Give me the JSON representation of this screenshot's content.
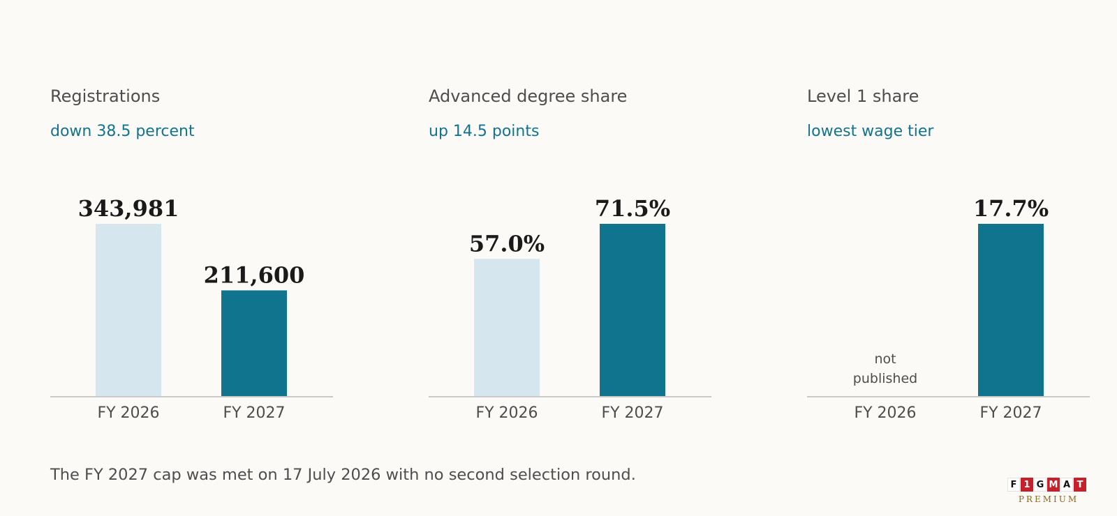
{
  "colors": {
    "background": "#fbfaf7",
    "bar_previous": "#d5e6ee",
    "bar_current": "#11748f",
    "subtitle": "#11748f",
    "text": "#4d4d4d",
    "value_label": "#1a1a1a",
    "axis": "#c8c8c8"
  },
  "chart_data": [
    {
      "type": "bar",
      "title": "Registrations",
      "subtitle": "down 38.5 percent",
      "categories": [
        "FY 2026",
        "FY 2027"
      ],
      "values": [
        343981,
        211600
      ],
      "value_labels": [
        "343,981",
        "211,600"
      ],
      "ylim": [
        0,
        343981
      ],
      "grid": false
    },
    {
      "type": "bar",
      "title": "Advanced degree share",
      "subtitle": "up 14.5 points",
      "categories": [
        "FY 2026",
        "FY 2027"
      ],
      "values": [
        57.0,
        71.5
      ],
      "value_labels": [
        "57.0%",
        "71.5%"
      ],
      "ylim": [
        0,
        71.5
      ],
      "grid": false
    },
    {
      "type": "bar",
      "title": "Level 1 share",
      "subtitle": "lowest wage tier",
      "categories": [
        "FY 2026",
        "FY 2027"
      ],
      "values": [
        null,
        17.7
      ],
      "value_labels": [
        "",
        "17.7%"
      ],
      "missing_label_lines": [
        "not",
        "published"
      ],
      "ylim": [
        0,
        17.7
      ],
      "grid": false
    }
  ],
  "footnote": "The FY 2027 cap was met on 17 July 2026 with no second selection round.",
  "logo": {
    "letters": [
      "F",
      "1",
      "G",
      "M",
      "A",
      "T"
    ],
    "subtext": "PREMIUM"
  }
}
